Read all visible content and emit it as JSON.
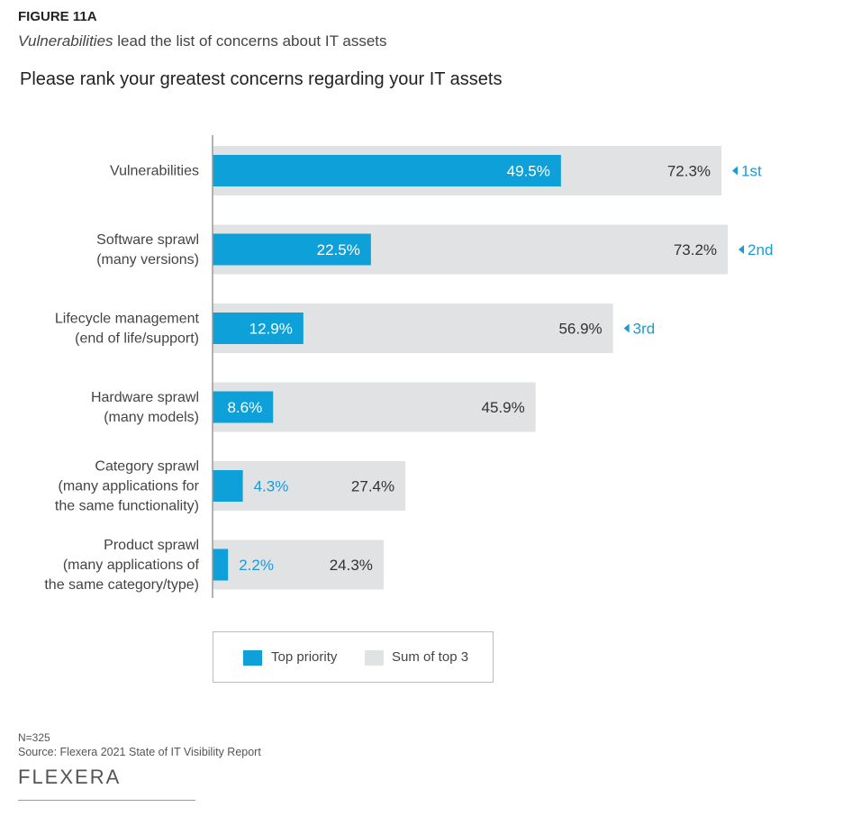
{
  "figure": {
    "label": "FIGURE 11A",
    "subtitle_emphasis": "Vulnerabilities",
    "subtitle_rest": " lead the list of concerns about IT assets"
  },
  "colors": {
    "top_priority": "#0ea0d8",
    "sum_top3": "#e1e2e4",
    "rank_marker": "#1a9ad6",
    "value_dark": "#333333",
    "axis": "#9a9a9a"
  },
  "chart_data": {
    "type": "bar",
    "orientation": "horizontal",
    "title": "Please rank your greatest concerns regarding your IT assets",
    "xlabel": "",
    "ylabel": "",
    "xlim": [
      0,
      75
    ],
    "grid": false,
    "legend_position": "bottom",
    "categories": [
      [
        "Vulnerabilities"
      ],
      [
        "Software sprawl",
        "(many versions)"
      ],
      [
        "Lifecycle management",
        "(end of life/support)"
      ],
      [
        "Hardware sprawl",
        "(many models)"
      ],
      [
        "Category sprawl",
        "(many applications for",
        "the same functionality)"
      ],
      [
        "Product sprawl",
        "(many applications of",
        "the same category/type)"
      ]
    ],
    "series": [
      {
        "name": "Sum of top 3",
        "values": [
          72.3,
          73.2,
          56.9,
          45.9,
          27.4,
          24.3
        ],
        "labels": [
          "72.3%",
          "73.2%",
          "56.9%",
          "45.9%",
          "27.4%",
          "24.3%"
        ]
      },
      {
        "name": "Top priority",
        "values": [
          49.5,
          22.5,
          12.9,
          8.6,
          4.3,
          2.2
        ],
        "labels": [
          "49.5%",
          "22.5%",
          "12.9%",
          "8.6%",
          "4.3%",
          "2.2%"
        ]
      }
    ],
    "rank_annotations": [
      "1st",
      "2nd",
      "3rd",
      "",
      "",
      ""
    ]
  },
  "legend": {
    "items": [
      {
        "label": "Top priority"
      },
      {
        "label": "Sum of top 3"
      }
    ]
  },
  "footer": {
    "n": "N=325",
    "source": "Source: Flexera 2021 State of IT Visibility Report",
    "logo": "FLEXERA"
  }
}
